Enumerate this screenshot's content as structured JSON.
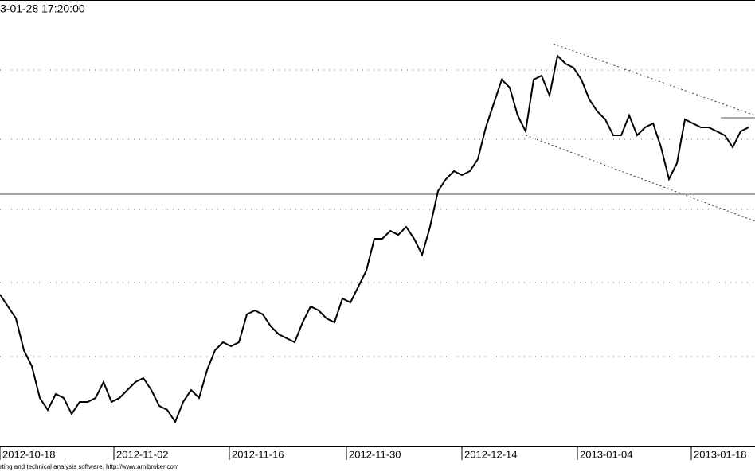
{
  "chart_data": {
    "type": "line",
    "timestamp_label": "3-01-28 17:20:00",
    "footer": "rting and technical analysis software. http://www.amibroker.com",
    "color": "#000000",
    "x": [
      0,
      1,
      2,
      3,
      4,
      5,
      6,
      7,
      8,
      9,
      10,
      11,
      12,
      13,
      14,
      15,
      16,
      17,
      18,
      19,
      20,
      21,
      22,
      23,
      24,
      25,
      26,
      27,
      28,
      29,
      30,
      31,
      32,
      33,
      34,
      35,
      36,
      37,
      38,
      39,
      40,
      41,
      42,
      43,
      44,
      45,
      46,
      47,
      48,
      49,
      50,
      51,
      52,
      53,
      54,
      55,
      56,
      57,
      58,
      59,
      60,
      61,
      62,
      63,
      64,
      65,
      66,
      67,
      68,
      69,
      70,
      71,
      72,
      73,
      74,
      75,
      76,
      77,
      78,
      79,
      80,
      81,
      82,
      83,
      84,
      85,
      86,
      87,
      88,
      89,
      90,
      91,
      92,
      93,
      94
    ],
    "values": [
      190,
      175,
      160,
      120,
      100,
      60,
      45,
      65,
      60,
      40,
      55,
      55,
      60,
      80,
      55,
      60,
      70,
      80,
      85,
      70,
      50,
      45,
      30,
      55,
      70,
      60,
      95,
      120,
      130,
      125,
      130,
      165,
      170,
      165,
      150,
      140,
      135,
      130,
      155,
      175,
      170,
      160,
      155,
      185,
      180,
      200,
      220,
      260,
      260,
      270,
      265,
      275,
      260,
      240,
      275,
      320,
      335,
      345,
      340,
      345,
      360,
      400,
      430,
      460,
      450,
      415,
      395,
      460,
      465,
      440,
      490,
      480,
      475,
      460,
      435,
      420,
      410,
      390,
      390,
      415,
      390,
      400,
      405,
      375,
      335,
      355,
      410,
      405,
      400,
      400,
      395,
      390,
      375,
      395,
      400
    ],
    "xlim": [
      0,
      94.8
    ],
    "xticks": [
      {
        "value": 0,
        "label": "2012-10-18"
      },
      {
        "value": 14.3,
        "label": "2012-11-02"
      },
      {
        "value": 28.8,
        "label": "2012-11-16"
      },
      {
        "value": 43.5,
        "label": "2012-11-30"
      },
      {
        "value": 58,
        "label": "2012-12-14"
      },
      {
        "value": 72.5,
        "label": "2013-01-04"
      },
      {
        "value": 86.8,
        "label": "2013-01-18"
      }
    ],
    "ylim": [
      0,
      560
    ],
    "yticks": [
      112,
      205,
      297,
      385,
      472
    ],
    "reference_line": 316,
    "grid": true
  }
}
